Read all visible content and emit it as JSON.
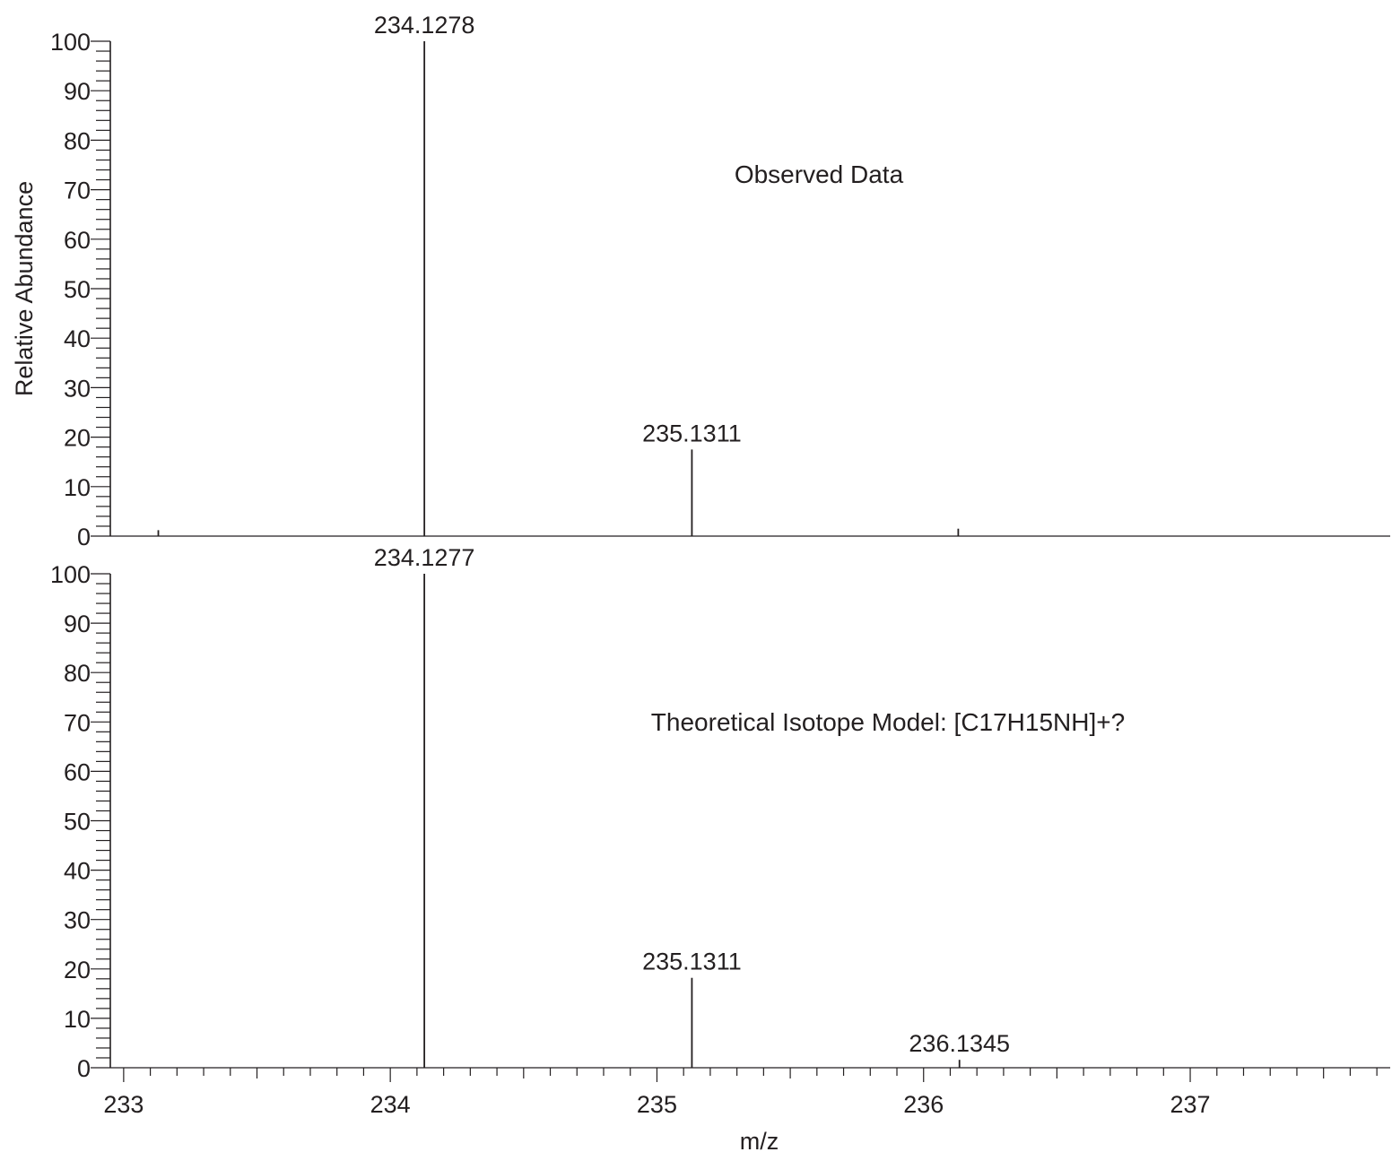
{
  "chart_data": [
    {
      "type": "line",
      "panel": "observed",
      "annotation": "Observed Data",
      "ylabel": "Relative Abundance",
      "xlabel": "",
      "xlim": [
        232.95,
        237.75
      ],
      "ylim": [
        0,
        100
      ],
      "y_ticks": [
        "0",
        "10",
        "20",
        "30",
        "40",
        "50",
        "60",
        "70",
        "80",
        "90",
        "100"
      ],
      "peaks": [
        {
          "x": 234.1278,
          "y": 100,
          "label": "234.1278"
        },
        {
          "x": 235.1311,
          "y": 17.5,
          "label": "235.1311"
        }
      ],
      "minor_peaks": [
        {
          "x": 233.13,
          "y": 1.2
        },
        {
          "x": 236.13,
          "y": 1.5
        }
      ],
      "grid": false
    },
    {
      "type": "line",
      "panel": "theoretical",
      "annotation": "Theoretical Isotope Model: [C17H15NH]+?",
      "ylabel": "",
      "xlabel": "m/z",
      "xlim": [
        232.95,
        237.75
      ],
      "ylim": [
        0,
        100
      ],
      "x_ticks": [
        "233",
        "234",
        "235",
        "236",
        "237"
      ],
      "y_ticks": [
        "0",
        "10",
        "20",
        "30",
        "40",
        "50",
        "60",
        "70",
        "80",
        "90",
        "100"
      ],
      "peaks": [
        {
          "x": 234.1277,
          "y": 100,
          "label": "234.1277"
        },
        {
          "x": 235.1311,
          "y": 18.2,
          "label": "235.1311"
        },
        {
          "x": 236.1345,
          "y": 1.6,
          "label": "236.1345"
        }
      ],
      "grid": false
    }
  ]
}
